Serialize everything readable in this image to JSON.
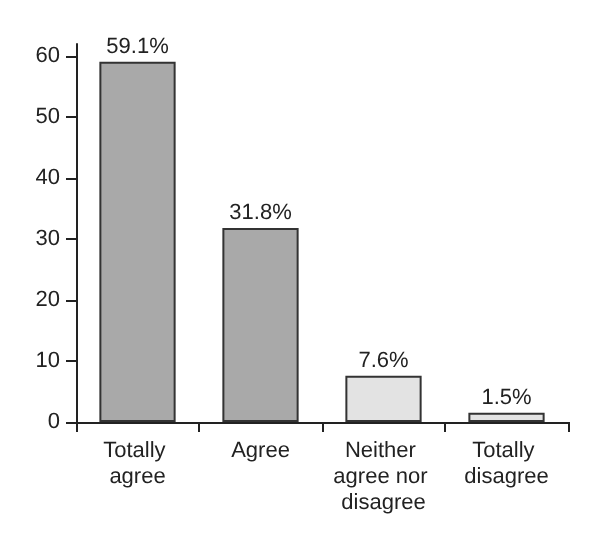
{
  "chart_data": {
    "type": "bar",
    "categories": [
      "Totally agree",
      "Agree",
      "Neither agree nor disagree",
      "Totally disagree"
    ],
    "values": [
      59.1,
      31.8,
      7.6,
      1.5
    ],
    "colors": [
      "#a9a9a9",
      "#a9a9a9",
      "#e3e3e3",
      "#e3e3e3"
    ],
    "value_labels": [
      "59.1%",
      "31.8%",
      "7.6%",
      "1.5%"
    ],
    "ylim": [
      0,
      62
    ],
    "yticks": [
      0,
      10,
      20,
      30,
      40,
      50,
      60
    ],
    "grid": false
  }
}
